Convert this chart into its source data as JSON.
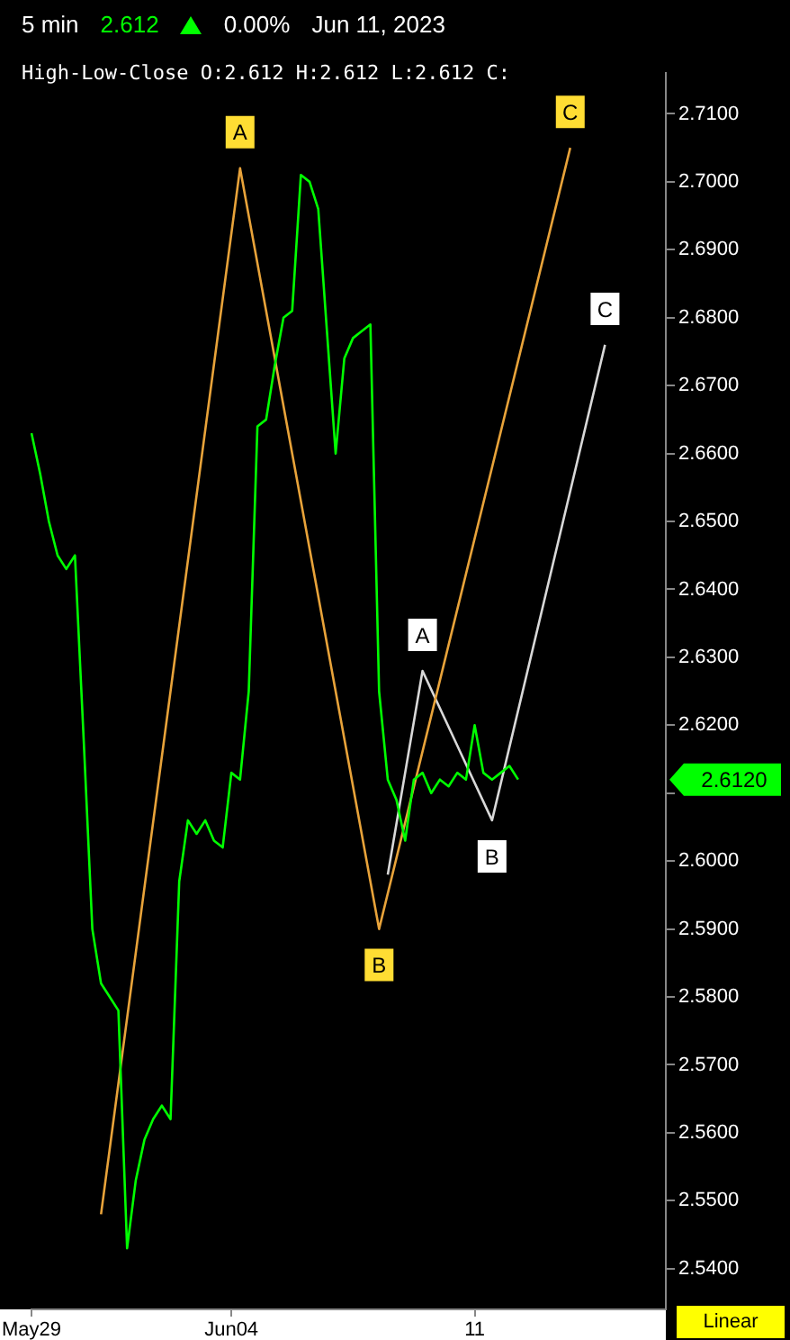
{
  "chart_data": {
    "type": "line",
    "title": "High-Low-Close O:2.612 H:2.612 L:2.612 C:",
    "annotations": [
      "5 min",
      "2.612",
      "0.00%",
      "Jun 11, 2023",
      "Linear",
      {
        "text": "A",
        "y": 2.702
      },
      {
        "text": "B",
        "y": 2.59
      },
      {
        "text": "C",
        "y": 2.705
      },
      {
        "text": "A",
        "y": 2.628
      },
      {
        "text": "B",
        "y": 2.606
      },
      {
        "text": "C",
        "y": 2.676
      },
      "2.6120"
    ],
    "categories": [
      "May29",
      null,
      null,
      null,
      null,
      null,
      null,
      null,
      null,
      null,
      null,
      null,
      null,
      null,
      null,
      null,
      null,
      null,
      null,
      null,
      null,
      null,
      null,
      "Jun04",
      null,
      null,
      null,
      null,
      null,
      null,
      null,
      null,
      null,
      null,
      null,
      null,
      null,
      null,
      null,
      null,
      null,
      null,
      null,
      null,
      null,
      null,
      null,
      null,
      null,
      null,
      null,
      "11",
      null,
      null,
      null,
      null,
      null,
      null,
      null,
      null,
      null,
      null,
      null,
      null,
      null,
      null,
      null,
      null,
      null,
      null,
      null,
      null,
      null,
      null
    ],
    "series": [
      {
        "color": "#00ff00",
        "values": [
          2.663,
          2.657,
          2.65,
          2.645,
          2.643,
          2.645,
          2.618,
          2.59,
          2.582,
          2.58,
          2.578,
          2.543,
          2.553,
          2.559,
          2.562,
          2.564,
          2.562,
          2.597,
          2.606,
          2.604,
          2.606,
          2.603,
          2.602,
          2.613,
          2.612,
          2.625,
          2.664,
          2.665,
          2.673,
          2.68,
          2.681,
          2.701,
          2.7,
          2.696,
          2.678,
          2.66,
          2.674,
          2.677,
          2.678,
          2.679,
          2.625,
          2.612,
          2.609,
          2.603,
          2.612,
          2.613,
          2.61,
          2.612,
          2.611,
          2.613,
          2.612,
          2.62,
          2.613,
          2.612,
          2.613,
          2.614,
          2.612,
          null,
          null,
          null,
          null,
          null,
          null,
          null,
          null,
          null,
          null,
          null,
          null,
          null,
          null,
          null,
          null,
          null
        ]
      },
      {
        "color": "#e8a33a",
        "values": [
          null,
          null,
          null,
          null,
          null,
          null,
          null,
          null,
          2.548,
          null,
          null,
          null,
          null,
          null,
          null,
          null,
          null,
          null,
          null,
          null,
          null,
          null,
          null,
          null,
          2.702,
          null,
          null,
          null,
          null,
          null,
          null,
          null,
          null,
          null,
          null,
          null,
          null,
          null,
          null,
          null,
          2.59,
          null,
          null,
          null,
          null,
          null,
          null,
          null,
          null,
          null,
          null,
          null,
          null,
          null,
          null,
          null,
          null,
          null,
          null,
          null,
          null,
          null,
          2.705,
          null,
          null,
          null,
          null,
          null,
          null,
          null,
          null,
          null,
          null,
          null
        ]
      },
      {
        "color": "#d8d8d8",
        "values": [
          null,
          null,
          null,
          null,
          null,
          null,
          null,
          null,
          null,
          null,
          null,
          null,
          null,
          null,
          null,
          null,
          null,
          null,
          null,
          null,
          null,
          null,
          null,
          null,
          null,
          null,
          null,
          null,
          null,
          null,
          null,
          null,
          null,
          null,
          null,
          null,
          null,
          null,
          null,
          null,
          null,
          2.598,
          null,
          null,
          null,
          2.628,
          null,
          null,
          null,
          null,
          null,
          null,
          null,
          2.606,
          null,
          null,
          null,
          null,
          null,
          null,
          null,
          null,
          null,
          null,
          null,
          null,
          2.676,
          null,
          null,
          null,
          null,
          null,
          null,
          null
        ]
      }
    ],
    "ylim": [
      2.534,
      2.716
    ],
    "yticks": [
      {
        "value": 2.54,
        "label": "2.5400"
      },
      {
        "value": 2.55,
        "label": "2.5500"
      },
      {
        "value": 2.56,
        "label": "2.5600"
      },
      {
        "value": 2.57,
        "label": "2.5700"
      },
      {
        "value": 2.58,
        "label": "2.5800"
      },
      {
        "value": 2.59,
        "label": "2.5900"
      },
      {
        "value": 2.6,
        "label": "2.6000"
      },
      {
        "value": 2.61,
        "label": null
      },
      {
        "value": 2.62,
        "label": "2.6200"
      },
      {
        "value": 2.63,
        "label": "2.6300"
      },
      {
        "value": 2.64,
        "label": "2.6400"
      },
      {
        "value": 2.65,
        "label": "2.6500"
      },
      {
        "value": 2.66,
        "label": "2.6600"
      },
      {
        "value": 2.67,
        "label": "2.6700"
      },
      {
        "value": 2.68,
        "label": "2.6800"
      },
      {
        "value": 2.69,
        "label": "2.6900"
      },
      {
        "value": 2.7,
        "label": "2.7000"
      },
      {
        "value": 2.71,
        "label": "2.7100"
      }
    ],
    "grid": false,
    "legend": false,
    "marker": "none",
    "line_style": "solid"
  }
}
